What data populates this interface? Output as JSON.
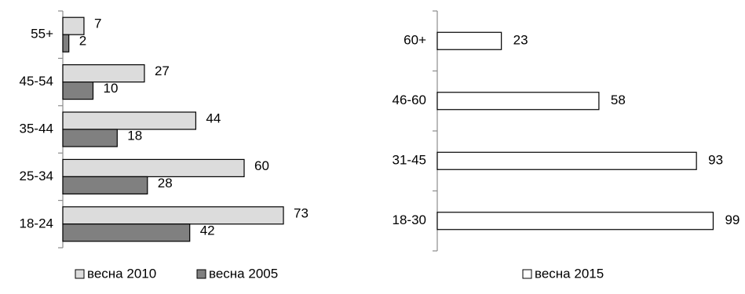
{
  "chart_data": [
    {
      "type": "bar",
      "orientation": "horizontal",
      "categories": [
        "55+",
        "45-54",
        "35-44",
        "25-34",
        "18-24"
      ],
      "series": [
        {
          "name": "весна 2010",
          "values": [
            7,
            27,
            44,
            60,
            73
          ],
          "color": "#dcdcdc"
        },
        {
          "name": "весна 2005",
          "values": [
            2,
            10,
            18,
            28,
            42
          ],
          "color": "#808080"
        }
      ],
      "legend_position": "bottom",
      "grid": false
    },
    {
      "type": "bar",
      "orientation": "horizontal",
      "categories": [
        "60+",
        "46-60",
        "31-45",
        "18-30"
      ],
      "series": [
        {
          "name": "весна 2015",
          "values": [
            23,
            58,
            93,
            99
          ],
          "color": "#ffffff"
        }
      ],
      "legend_position": "bottom",
      "grid": false
    }
  ]
}
